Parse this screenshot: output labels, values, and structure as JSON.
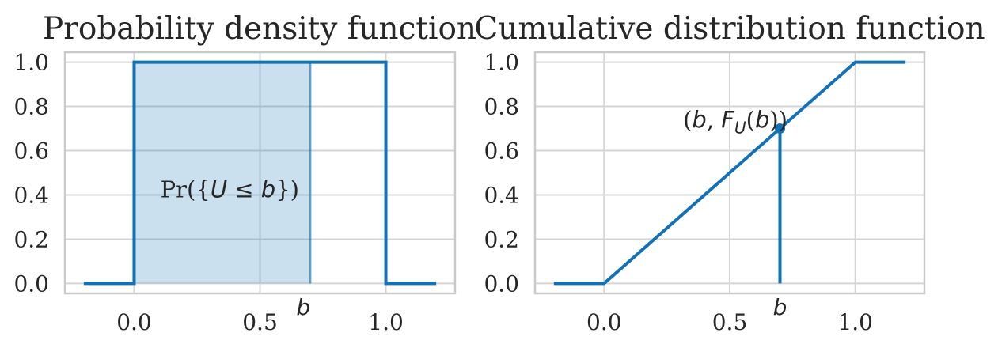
{
  "colors": {
    "line": "#1272b5",
    "fill_opacity": 0.22,
    "fill_edge_opacity": 0.65,
    "grid": "#d5d5d5",
    "spine": "#c9c9c9",
    "text": "#262626"
  },
  "chart_data": [
    {
      "type": "line",
      "title": "Probability density function",
      "xlim": [
        -0.275,
        1.275
      ],
      "ylim": [
        -0.045,
        1.045
      ],
      "grid": true,
      "xticks": {
        "values": [
          0.0,
          0.5,
          1.0
        ],
        "labels": [
          "0.0",
          "0.5",
          "1.0"
        ]
      },
      "yticks": {
        "values": [
          0.0,
          0.2,
          0.4,
          0.6,
          0.8,
          1.0
        ],
        "labels": [
          "0.0",
          "0.2",
          "0.4",
          "0.6",
          "0.8",
          "1.0"
        ]
      },
      "series": [
        {
          "name": "pdf",
          "x": [
            -0.2,
            0,
            0,
            1,
            1,
            1.2
          ],
          "y": [
            0,
            0,
            1,
            1,
            0,
            0
          ]
        }
      ],
      "fill_region": {
        "x0": 0.0,
        "x1": 0.7,
        "y0": 0.0,
        "y1": 1.0,
        "edge_x": 0.7
      },
      "annotations": [
        {
          "id": "probability-label",
          "segments": [
            {
              "t": "Pr({",
              "style": "up"
            },
            {
              "t": "U",
              "style": "it"
            },
            {
              "t": " ≤ ",
              "style": "up"
            },
            {
              "t": "b",
              "style": "it"
            },
            {
              "t": "})",
              "style": "up"
            }
          ],
          "x": 0.38,
          "y": 0.425,
          "anchor": "middle",
          "font_size": 29
        },
        {
          "id": "b-label",
          "text": "b",
          "italic": true,
          "x": 0.7,
          "anchor": "end",
          "below_axis": true,
          "font_size": 28
        }
      ]
    },
    {
      "type": "line",
      "title": "Cumulative distribution function",
      "xlim": [
        -0.275,
        1.275
      ],
      "ylim": [
        -0.045,
        1.045
      ],
      "grid": true,
      "xticks": {
        "values": [
          0.0,
          0.5,
          1.0
        ],
        "labels": [
          "0.0",
          "0.5",
          "1.0"
        ]
      },
      "yticks": {
        "values": [
          0.0,
          0.2,
          0.4,
          0.6,
          0.8,
          1.0
        ],
        "labels": [
          "0.0",
          "0.2",
          "0.4",
          "0.6",
          "0.8",
          "1.0"
        ]
      },
      "series": [
        {
          "name": "cdf",
          "x": [
            -0.2,
            0,
            1,
            1.2
          ],
          "y": [
            0,
            0,
            1,
            1
          ]
        }
      ],
      "vline": {
        "x": 0.7,
        "y0": 0.0,
        "y1": 0.7
      },
      "point": {
        "x": 0.7,
        "y": 0.7
      },
      "annotations": [
        {
          "id": "point-label",
          "segments": [
            {
              "t": "(",
              "style": "up"
            },
            {
              "t": "b",
              "style": "it"
            },
            {
              "t": ", ",
              "style": "up"
            },
            {
              "t": "F",
              "style": "it"
            },
            {
              "t": "U",
              "style": "sub"
            },
            {
              "t": "(",
              "style": "up"
            },
            {
              "t": "b",
              "style": "it"
            },
            {
              "t": "))",
              "style": "up"
            }
          ],
          "x": 0.73,
          "y": 0.74,
          "anchor": "end",
          "font_size": 29
        },
        {
          "id": "b-label",
          "text": "b",
          "italic": true,
          "x": 0.7,
          "anchor": "middle",
          "below_axis": true,
          "font_size": 28
        }
      ]
    }
  ]
}
